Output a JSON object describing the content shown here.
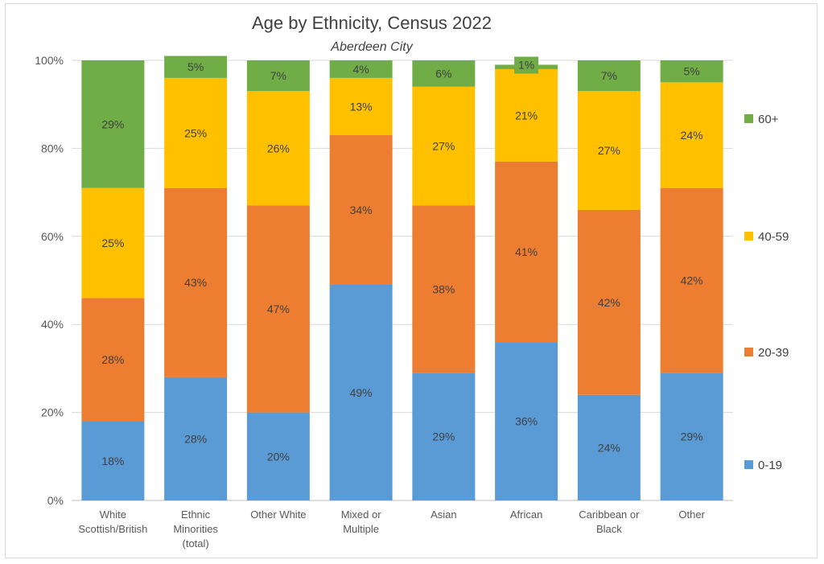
{
  "chart_data": {
    "type": "bar",
    "stacked": true,
    "title": "Age by Ethnicity, Census 2022",
    "subtitle": "Aberdeen City",
    "xlabel": "",
    "ylabel": "",
    "ylim": [
      0,
      100
    ],
    "y_ticks": [
      "0%",
      "20%",
      "40%",
      "60%",
      "80%",
      "100%"
    ],
    "grid": true,
    "legend_position": "right",
    "categories": [
      [
        "White",
        "Scottish/British"
      ],
      [
        "Ethnic",
        "Minorities",
        "(total)"
      ],
      [
        "Other White"
      ],
      [
        "Mixed or",
        "Multiple"
      ],
      [
        "Asian"
      ],
      [
        "African"
      ],
      [
        "Caribbean or",
        "Black"
      ],
      [
        "Other"
      ]
    ],
    "series": [
      {
        "name": "0-19",
        "color": "#5b9bd5",
        "values": [
          18,
          28,
          20,
          49,
          29,
          36,
          24,
          29
        ]
      },
      {
        "name": "20-39",
        "color": "#ed7d31",
        "values": [
          28,
          43,
          47,
          34,
          38,
          41,
          42,
          42
        ]
      },
      {
        "name": "40-59",
        "color": "#ffc000",
        "values": [
          25,
          25,
          26,
          13,
          27,
          21,
          27,
          24
        ]
      },
      {
        "name": "60+",
        "color": "#70ad47",
        "values": [
          29,
          5,
          7,
          4,
          6,
          1,
          7,
          5
        ]
      }
    ]
  }
}
